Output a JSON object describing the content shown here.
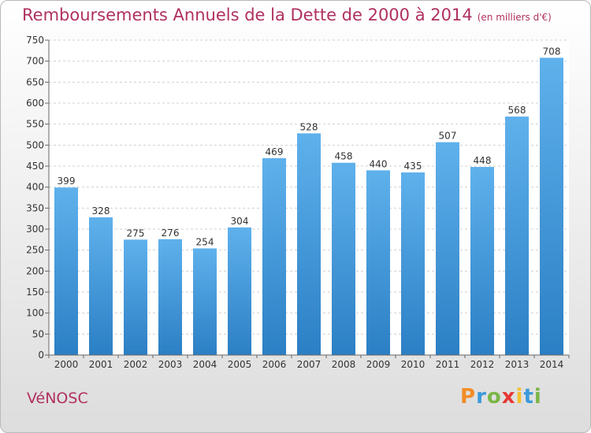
{
  "title": "Remboursements Annuels de la Dette de 2000 à 2014",
  "unit": "(en milliers d'€)",
  "commune": "VéNOSC",
  "logo": {
    "letters": [
      "P",
      "r",
      "o",
      "x",
      "i",
      "t",
      "i"
    ],
    "colors": [
      "#f28c28",
      "#3b9ad9",
      "#7ab648",
      "#e53935",
      "#f2c12e",
      "#3b9ad9",
      "#7ab648"
    ]
  },
  "chart_data": {
    "type": "bar",
    "categories": [
      "2000",
      "2001",
      "2002",
      "2003",
      "2004",
      "2005",
      "2006",
      "2007",
      "2008",
      "2009",
      "2010",
      "2011",
      "2012",
      "2013",
      "2014"
    ],
    "values": [
      399,
      328,
      275,
      276,
      254,
      304,
      469,
      528,
      458,
      440,
      435,
      507,
      448,
      568,
      708
    ],
    "ylim": [
      0,
      750
    ],
    "yticks": [
      0,
      50,
      100,
      150,
      200,
      250,
      300,
      350,
      400,
      450,
      500,
      550,
      600,
      650,
      700,
      750
    ],
    "grid": true,
    "bar_color": "#3d94d6"
  }
}
